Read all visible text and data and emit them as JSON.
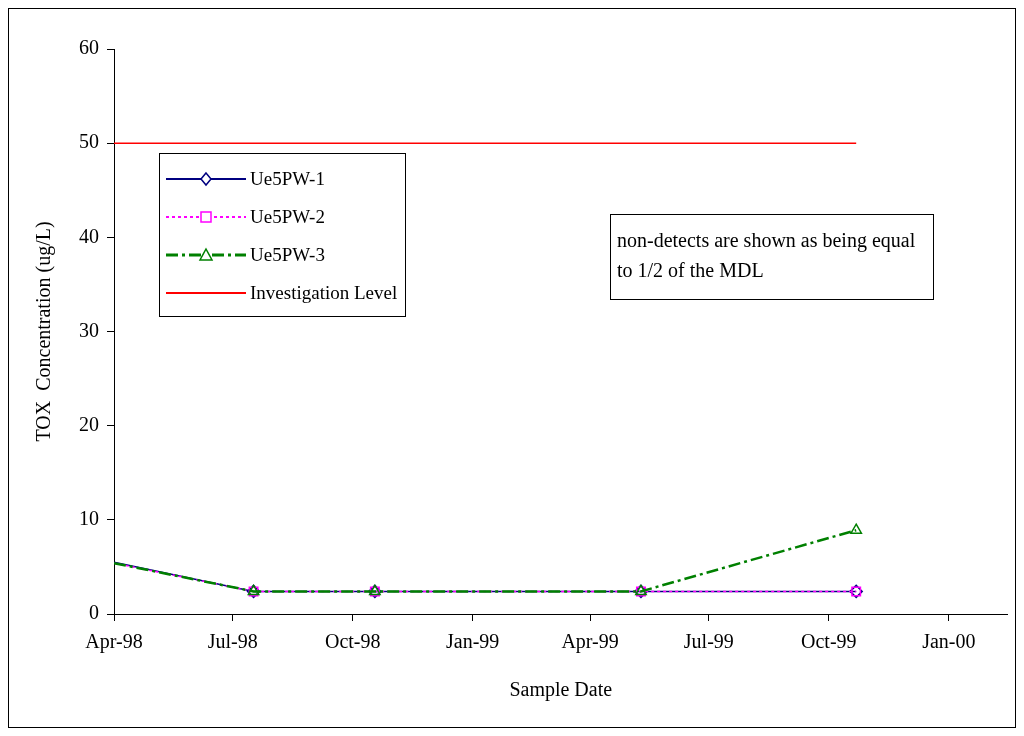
{
  "chart_data": {
    "type": "line",
    "xlabel": "Sample Date",
    "ylabel": "TOX  Concentration (ug/L)",
    "xlim": [
      "1998-04-01",
      "2000-02-15"
    ],
    "xticks": [
      {
        "value": "1998-04-01",
        "label": "Apr-98"
      },
      {
        "value": "1998-07-01",
        "label": "Jul-98"
      },
      {
        "value": "1998-10-01",
        "label": "Oct-98"
      },
      {
        "value": "1999-01-01",
        "label": "Jan-99"
      },
      {
        "value": "1999-04-01",
        "label": "Apr-99"
      },
      {
        "value": "1999-07-01",
        "label": "Jul-99"
      },
      {
        "value": "1999-10-01",
        "label": "Oct-99"
      },
      {
        "value": "2000-01-01",
        "label": "Jan-00"
      }
    ],
    "ylim": [
      0,
      60
    ],
    "yticks": [
      0,
      10,
      20,
      30,
      40,
      50,
      60
    ],
    "grid": false,
    "legend": "top left",
    "series": [
      {
        "name": "Ue5PW-1",
        "color": "#000080",
        "marker": "diamond",
        "line_style": "solid",
        "x": [
          "1998-04-01",
          "1998-07-17",
          "1998-10-18",
          "1999-05-10",
          "1999-10-22"
        ],
        "values": [
          5.5,
          2.4,
          2.4,
          2.4,
          2.4
        ]
      },
      {
        "name": "Ue5PW-2",
        "color": "#ff00ff",
        "marker": "square",
        "line_style": "dotted",
        "x": [
          "1998-04-01",
          "1998-07-17",
          "1998-10-18",
          "1999-05-10",
          "1999-10-22"
        ],
        "values": [
          5.4,
          2.4,
          2.4,
          2.4,
          2.4
        ]
      },
      {
        "name": "Ue5PW-3",
        "color": "#008000",
        "marker": "triangle",
        "line_style": "dashed",
        "x": [
          "1998-04-01",
          "1998-07-17",
          "1998-10-18",
          "1999-05-10",
          "1999-10-22"
        ],
        "values": [
          5.4,
          2.4,
          2.4,
          2.4,
          8.9
        ]
      },
      {
        "name": "Investigation Level",
        "color": "#ff0000",
        "marker": "none",
        "line_style": "solid",
        "x": [
          "1998-04-01",
          "1999-10-22"
        ],
        "values": [
          50,
          50
        ]
      }
    ],
    "annotations": [
      "non-detects are shown as being equal to 1/2 of the MDL"
    ]
  }
}
